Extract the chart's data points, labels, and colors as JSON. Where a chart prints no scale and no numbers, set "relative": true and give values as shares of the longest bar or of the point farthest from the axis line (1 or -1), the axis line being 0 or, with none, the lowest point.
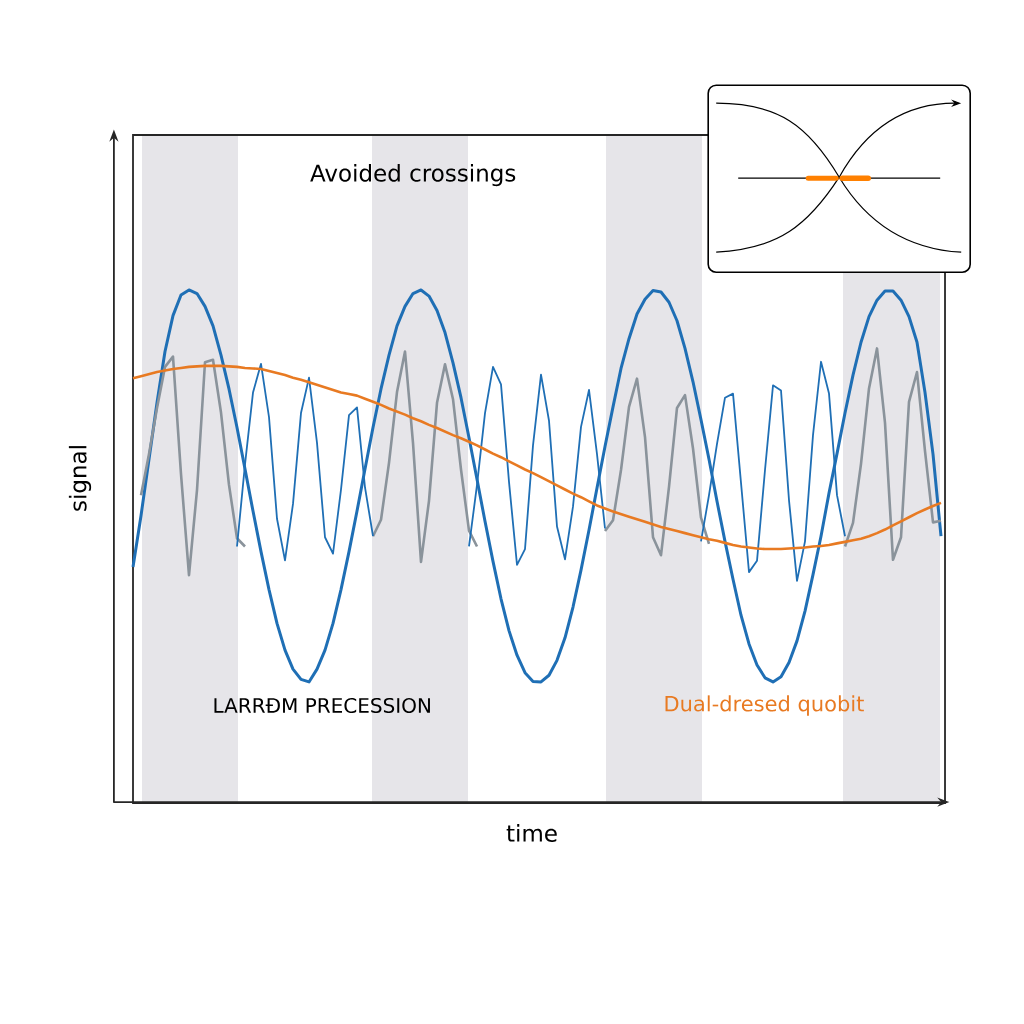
{
  "chart_data": {
    "type": "line",
    "relative": true,
    "xlabel": "time",
    "ylabel": "signal",
    "tick_labels": false,
    "categories": [
      null,
      null,
      null,
      null,
      null,
      null,
      null,
      null,
      null,
      null,
      null,
      null,
      null,
      null,
      null,
      null,
      null,
      null,
      null,
      null,
      null,
      null,
      null,
      null,
      null,
      null,
      null,
      null,
      null,
      null,
      null,
      null,
      null,
      null,
      null,
      null,
      null,
      null,
      null,
      null,
      null,
      null,
      null,
      null,
      null,
      null,
      null,
      null,
      null,
      null,
      null,
      null,
      null,
      null,
      null,
      null,
      null,
      null,
      null,
      null,
      null,
      null,
      null,
      null,
      null,
      null,
      null,
      null,
      null,
      null,
      null,
      null,
      null,
      null,
      null,
      null,
      null,
      null,
      null,
      null,
      null,
      null,
      null,
      null,
      null,
      null,
      null,
      null,
      null,
      null,
      null,
      null,
      null,
      null,
      null,
      null,
      null,
      null,
      null,
      null,
      null,
      null
    ],
    "annotations": [
      "Avoided crossings",
      "LARRÐM PRECESSION"
    ],
    "series": [
      {
        "color": "#1f6fb5",
        "values": [
          0.46,
          0.56,
          0.67,
          0.78,
          0.88,
          0.95,
          0.99,
          1.0,
          0.993,
          0.968,
          0.93,
          0.873,
          0.807,
          0.732,
          0.651,
          0.569,
          0.49,
          0.416,
          0.35,
          0.298,
          0.261,
          0.241,
          0.236,
          0.261,
          0.298,
          0.35,
          0.416,
          0.49,
          0.569,
          0.651,
          0.732,
          0.807,
          0.873,
          0.93,
          0.968,
          0.993,
          1.0,
          0.988,
          0.96,
          0.917,
          0.858,
          0.79,
          0.712,
          0.631,
          0.549,
          0.471,
          0.398,
          0.336,
          0.288,
          0.254,
          0.237,
          0.236,
          0.249,
          0.278,
          0.322,
          0.382,
          0.454,
          0.532,
          0.614,
          0.695,
          0.772,
          0.847,
          0.905,
          0.953,
          0.982,
          0.999,
          0.996,
          0.976,
          0.94,
          0.886,
          0.821,
          0.747,
          0.67,
          0.588,
          0.51,
          0.436,
          0.366,
          0.31,
          0.269,
          0.244,
          0.236,
          0.246,
          0.274,
          0.316,
          0.374,
          0.445,
          0.52,
          0.604,
          0.681,
          0.76,
          0.834,
          0.898,
          0.948,
          0.98,
          0.998,
          0.998,
          0.98,
          0.948,
          0.898,
          0.8,
          0.68,
          0.52
        ]
      },
      {
        "color": "#8a939b",
        "values": [
          null,
          0.6,
          0.68,
          0.77,
          0.85,
          0.87,
          0.641,
          0.444,
          0.61,
          0.859,
          0.864,
          0.761,
          0.62,
          0.516,
          0.5,
          null,
          null,
          null,
          null,
          null,
          null,
          null,
          null,
          null,
          null,
          null,
          null,
          null,
          null,
          null,
          0.52,
          0.552,
          0.663,
          0.801,
          0.88,
          0.702,
          0.47,
          0.589,
          0.78,
          0.855,
          0.787,
          0.65,
          0.531,
          0.5,
          null,
          null,
          null,
          null,
          null,
          null,
          null,
          null,
          null,
          null,
          null,
          null,
          null,
          null,
          null,
          0.53,
          0.551,
          0.649,
          0.772,
          0.827,
          0.713,
          0.518,
          0.483,
          0.616,
          0.77,
          0.795,
          0.691,
          0.556,
          0.505,
          null,
          null,
          null,
          null,
          null,
          null,
          null,
          null,
          null,
          null,
          null,
          null,
          null,
          null,
          null,
          null,
          0.5,
          0.546,
          0.661,
          0.808,
          0.886,
          0.741,
          0.474,
          0.518,
          0.782,
          0.84,
          0.686,
          0.547,
          0.55
        ]
      },
      {
        "color": "#1f6fb5",
        "values": [
          null,
          null,
          null,
          null,
          null,
          null,
          null,
          null,
          null,
          null,
          null,
          null,
          null,
          0.5,
          0.66,
          0.8,
          0.856,
          0.752,
          0.554,
          0.473,
          0.583,
          0.76,
          0.829,
          0.702,
          0.518,
          0.486,
          0.611,
          0.756,
          0.771,
          0.615,
          0.52,
          null,
          null,
          null,
          null,
          null,
          null,
          null,
          null,
          null,
          null,
          null,
          0.5,
          0.62,
          0.76,
          0.85,
          0.816,
          0.626,
          0.464,
          0.495,
          0.697,
          0.835,
          0.745,
          0.539,
          0.475,
          0.578,
          0.733,
          0.805,
          0.68,
          0.535,
          null,
          null,
          null,
          null,
          null,
          null,
          null,
          null,
          null,
          null,
          null,
          0.51,
          0.6,
          0.7,
          0.79,
          0.798,
          0.624,
          0.45,
          0.472,
          0.649,
          0.814,
          0.804,
          0.59,
          0.433,
          0.51,
          0.717,
          0.86,
          0.798,
          0.6,
          0.52,
          null,
          null,
          null,
          null,
          null,
          null,
          null,
          null,
          null,
          null,
          null,
          null
        ]
      },
      {
        "name": "Dual-dresed quobit",
        "color": "#e87a22",
        "values": [
          0.828,
          0.832,
          0.836,
          0.84,
          0.843,
          0.846,
          0.848,
          0.85,
          0.851,
          0.852,
          0.852,
          0.852,
          0.851,
          0.85,
          0.848,
          0.847,
          0.846,
          0.842,
          0.838,
          0.834,
          0.829,
          0.825,
          0.82,
          0.815,
          0.81,
          0.805,
          0.8,
          0.797,
          0.794,
          0.788,
          0.782,
          0.776,
          0.769,
          0.763,
          0.757,
          0.75,
          0.744,
          0.737,
          0.731,
          0.724,
          0.717,
          0.711,
          0.704,
          0.697,
          0.689,
          0.681,
          0.674,
          0.666,
          0.658,
          0.65,
          0.643,
          0.635,
          0.627,
          0.619,
          0.611,
          0.603,
          0.596,
          0.588,
          0.58,
          0.574,
          0.568,
          0.563,
          0.558,
          0.553,
          0.548,
          0.543,
          0.538,
          0.534,
          0.53,
          0.526,
          0.522,
          0.518,
          0.514,
          0.511,
          0.507,
          0.503,
          0.5,
          0.498,
          0.496,
          0.495,
          0.495,
          0.495,
          0.496,
          0.497,
          0.498,
          0.5,
          0.501,
          0.503,
          0.506,
          0.509,
          0.512,
          0.515,
          0.52,
          0.526,
          0.533,
          0.541,
          0.549,
          0.557,
          0.565,
          0.572,
          0.579,
          0.585
        ]
      }
    ]
  }
}
